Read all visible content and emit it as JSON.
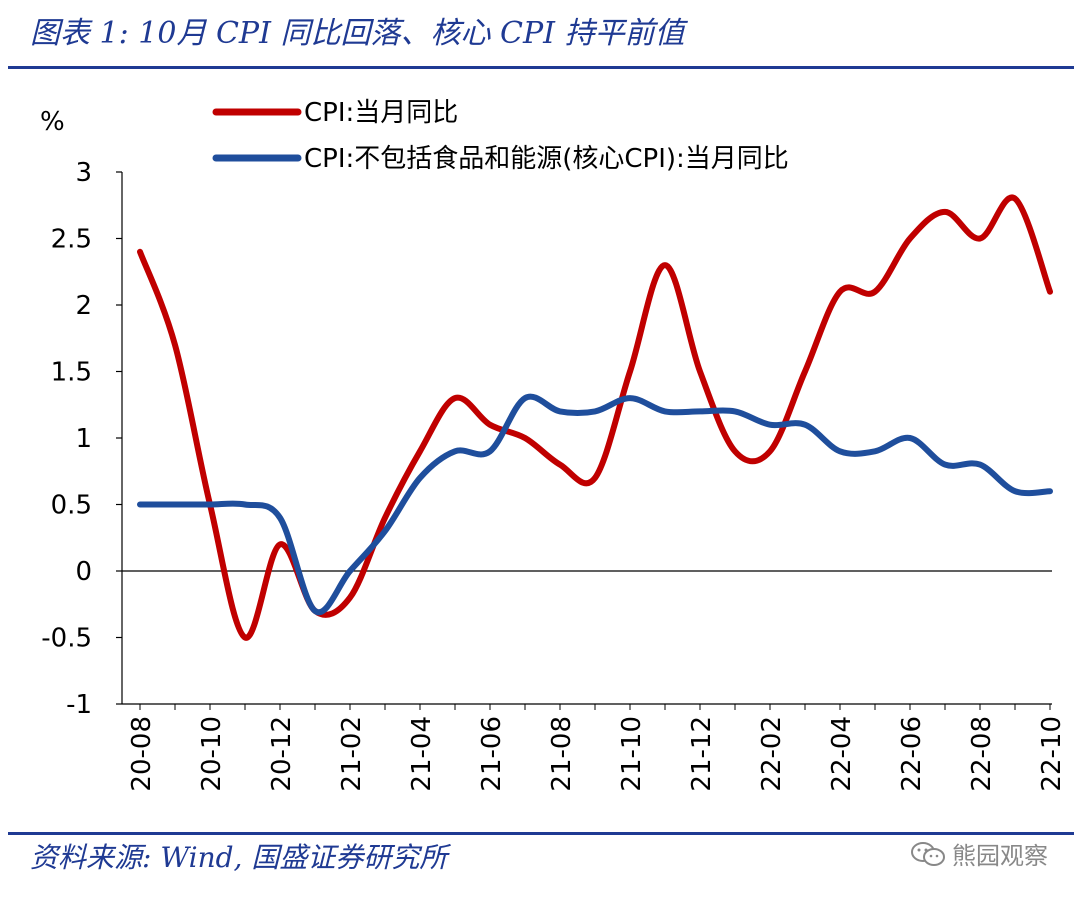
{
  "header": {
    "title": "图表 1: 10月 CPI 同比回落、核心 CPI 持平前值"
  },
  "footer": {
    "source": "资料来源: Wind, 国盛证券研究所",
    "watermark": "熊园观察",
    "watermark_icon": "wechat-icon"
  },
  "colors": {
    "brand": "#1f3a93",
    "series_cpi": "#c00000",
    "series_core": "#1f4e9c"
  },
  "chart_data": {
    "type": "line",
    "title": "",
    "ylabel": "%",
    "xlabel": "",
    "ylim": [
      -1,
      3
    ],
    "yticks": [
      "3",
      "2.5",
      "2",
      "1.5",
      "1",
      "0.5",
      "0",
      "-0.5",
      "-1"
    ],
    "ytick_values": [
      3,
      2.5,
      2,
      1.5,
      1,
      0.5,
      0,
      -0.5,
      -1
    ],
    "x": [
      "20-08",
      "20-09",
      "20-10",
      "20-11",
      "20-12",
      "21-01",
      "21-02",
      "21-03",
      "21-04",
      "21-05",
      "21-06",
      "21-07",
      "21-08",
      "21-09",
      "21-10",
      "21-11",
      "21-12",
      "22-01",
      "22-02",
      "22-03",
      "22-04",
      "22-05",
      "22-06",
      "22-07",
      "22-08",
      "22-09",
      "22-10"
    ],
    "xtick_labels": [
      "20-08",
      "20-10",
      "20-12",
      "21-02",
      "21-04",
      "21-06",
      "21-08",
      "21-10",
      "21-12",
      "22-02",
      "22-04",
      "22-06",
      "22-08",
      "22-10"
    ],
    "legend_position": "top",
    "series": [
      {
        "name": "CPI:当月同比",
        "color": "#c00000",
        "values": [
          2.4,
          1.7,
          0.5,
          -0.5,
          0.2,
          -0.3,
          -0.2,
          0.4,
          0.9,
          1.3,
          1.1,
          1.0,
          0.8,
          0.7,
          1.5,
          2.3,
          1.5,
          0.9,
          0.9,
          1.5,
          2.1,
          2.1,
          2.5,
          2.7,
          2.5,
          2.8,
          2.1
        ]
      },
      {
        "name": "CPI:不包括食品和能源(核心CPI):当月同比",
        "color": "#1f4e9c",
        "values": [
          0.5,
          0.5,
          0.5,
          0.5,
          0.4,
          -0.3,
          0.0,
          0.3,
          0.7,
          0.9,
          0.9,
          1.3,
          1.2,
          1.2,
          1.3,
          1.2,
          1.2,
          1.2,
          1.1,
          1.1,
          0.9,
          0.9,
          1.0,
          0.8,
          0.8,
          0.6,
          0.6
        ]
      }
    ]
  }
}
